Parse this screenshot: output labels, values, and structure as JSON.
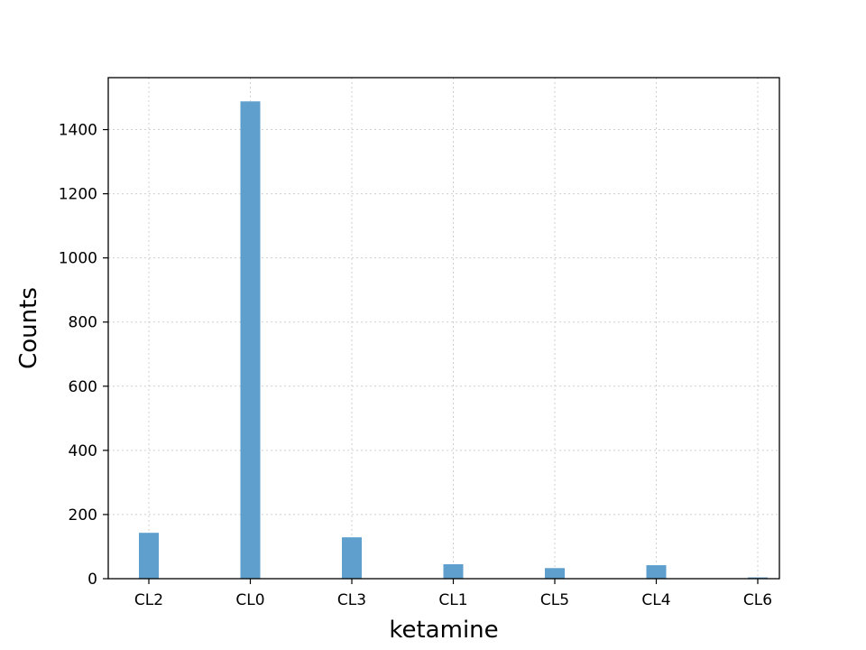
{
  "chart_data": {
    "type": "bar",
    "title": "",
    "xlabel": "ketamine",
    "ylabel": "Counts",
    "categories": [
      "CL2",
      "CL0",
      "CL3",
      "CL1",
      "CL5",
      "CL4",
      "CL6"
    ],
    "values": [
      143,
      1488,
      129,
      45,
      33,
      42,
      4
    ],
    "ylim": [
      0,
      1562
    ],
    "yticks": [
      0,
      200,
      400,
      600,
      800,
      1000,
      1200,
      1400
    ],
    "grid": true,
    "bar_color": "#5f9fce",
    "grid_color": "#cfcfcf",
    "axis_color": "#000000"
  }
}
